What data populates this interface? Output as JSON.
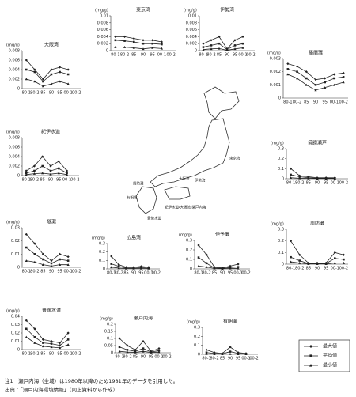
{
  "chart_data": [
    {
      "type": "line",
      "title": "東京湾",
      "y_label": "(mg/g)",
      "categories": [
        "80-1",
        "80-2",
        "85",
        "90",
        "95",
        "00-1",
        "00-2"
      ],
      "ylim": [
        0,
        0.01
      ],
      "yticks": [
        0,
        0.002,
        0.004,
        0.006,
        0.008,
        0.01
      ],
      "series": [
        {
          "marker": "diamond",
          "color": "#222",
          "values": [
            0.004,
            0.004,
            0.0035,
            0.003,
            0.003,
            0.0025,
            null
          ]
        },
        {
          "marker": "square",
          "color": "#222",
          "values": [
            0.003,
            0.0028,
            0.0025,
            0.002,
            0.002,
            0.0018,
            null
          ]
        },
        {
          "marker": "triangle",
          "color": "#222",
          "values": [
            0.001,
            0.001,
            0.0008,
            0.0005,
            0.0008,
            0.0006,
            null
          ]
        }
      ]
    },
    {
      "type": "line",
      "title": "伊勢湾",
      "y_label": "(mg/g)",
      "categories": [
        "80-1",
        "80-2",
        "85",
        "90",
        "95",
        "00-1",
        "00-2"
      ],
      "ylim": [
        0,
        0.01
      ],
      "yticks": [
        0,
        0.002,
        0.004,
        0.006,
        0.008,
        0.01
      ],
      "series": [
        {
          "marker": "diamond",
          "color": "#222",
          "values": [
            0.002,
            0.003,
            0.004,
            0.0005,
            0.003,
            0.004,
            null
          ]
        },
        {
          "marker": "square",
          "color": "#222",
          "values": [
            0.001,
            0.0015,
            0.002,
            0.0003,
            0.0015,
            0.002,
            null
          ]
        },
        {
          "marker": "triangle",
          "color": "#222",
          "values": [
            0.0003,
            0.0005,
            0.0006,
            0.0001,
            0.0005,
            0.0008,
            null
          ]
        }
      ]
    },
    {
      "type": "line",
      "title": "大阪湾",
      "y_label": "(mg/g)",
      "categories": [
        "80-1",
        "80-2",
        "85",
        "90",
        "95",
        "00-1",
        "00-2"
      ],
      "ylim": [
        0,
        0.008
      ],
      "yticks": [
        0,
        0.002,
        0.004,
        0.006,
        0.008
      ],
      "series": [
        {
          "marker": "diamond",
          "color": "#222",
          "values": [
            0.006,
            0.004,
            0.002,
            0.004,
            0.0045,
            0.004,
            null
          ]
        },
        {
          "marker": "square",
          "color": "#222",
          "values": [
            0.004,
            0.0035,
            0.0015,
            0.003,
            0.0035,
            0.003,
            null
          ]
        },
        {
          "marker": "triangle",
          "color": "#222",
          "values": [
            0.002,
            0.0015,
            0.0005,
            0.001,
            0.0015,
            0.001,
            null
          ]
        }
      ]
    },
    {
      "type": "line",
      "title": "播磨灘",
      "y_label": "(mg/g)",
      "categories": [
        "80-1",
        "80-2",
        "85",
        "90",
        "95",
        "00-1",
        "00-2"
      ],
      "ylim": [
        0,
        0.003
      ],
      "yticks": [
        0,
        0.001,
        0.002,
        0.003
      ],
      "series": [
        {
          "marker": "diamond",
          "color": "#222",
          "values": [
            0.0026,
            0.0024,
            0.002,
            0.0014,
            0.0015,
            0.0018,
            0.0019
          ]
        },
        {
          "marker": "square",
          "color": "#222",
          "values": [
            0.0022,
            0.002,
            0.0015,
            0.001,
            0.0012,
            0.0015,
            0.0016
          ]
        },
        {
          "marker": "triangle",
          "color": "#222",
          "values": [
            0.0018,
            0.0015,
            0.001,
            0.0006,
            0.0008,
            0.001,
            0.0012
          ]
        }
      ]
    },
    {
      "type": "line",
      "title": "紀伊水道",
      "y_label": "(mg/g)",
      "categories": [
        "80-1",
        "80-2",
        "85",
        "90",
        "95",
        "00-1",
        "00-2"
      ],
      "ylim": [
        0,
        0.008
      ],
      "yticks": [
        0,
        0.002,
        0.004,
        0.006,
        0.008
      ],
      "series": [
        {
          "marker": "diamond",
          "color": "#222",
          "values": [
            0.001,
            0.002,
            0.004,
            0.002,
            0.003,
            0.001,
            null
          ]
        },
        {
          "marker": "square",
          "color": "#222",
          "values": [
            0.0005,
            0.001,
            0.002,
            0.001,
            0.0015,
            0.0005,
            null
          ]
        },
        {
          "marker": "triangle",
          "color": "#222",
          "values": [
            0.0002,
            0.0004,
            0.0005,
            0.0003,
            0.0005,
            0.0002,
            null
          ]
        }
      ]
    },
    {
      "type": "line",
      "title": "備讃瀬戸",
      "y_label": "(mg/g)",
      "categories": [
        "80-1",
        "80-2",
        "85",
        "90",
        "95",
        "00-1",
        "00-2"
      ],
      "ylim": [
        0,
        0.3
      ],
      "yticks": [
        0,
        0.1,
        0.2,
        0.3
      ],
      "series": [
        {
          "marker": "diamond",
          "color": "#222",
          "values": [
            0.1,
            0.03,
            0.02,
            0.01,
            0.01,
            0.01,
            null
          ]
        },
        {
          "marker": "square",
          "color": "#222",
          "values": [
            0.04,
            0.02,
            0.01,
            0.005,
            0.005,
            0.005,
            null
          ]
        },
        {
          "marker": "triangle",
          "color": "#222",
          "values": [
            0.01,
            0.005,
            0.004,
            0.002,
            0.002,
            0.002,
            null
          ]
        }
      ]
    },
    {
      "type": "line",
      "title": "燧灘",
      "y_label": "(mg/g)",
      "categories": [
        "80-1",
        "80-2",
        "85",
        "90",
        "95",
        "00-1",
        "00-2"
      ],
      "ylim": [
        0,
        0.03
      ],
      "yticks": [
        0,
        0.01,
        0.02,
        0.03
      ],
      "series": [
        {
          "marker": "diamond",
          "color": "#222",
          "values": [
            0.025,
            0.018,
            0.01,
            0.005,
            0.01,
            0.008,
            null
          ]
        },
        {
          "marker": "square",
          "color": "#222",
          "values": [
            0.015,
            0.01,
            0.006,
            0.003,
            0.006,
            0.005,
            null
          ]
        },
        {
          "marker": "triangle",
          "color": "#222",
          "values": [
            0.005,
            0.004,
            0.002,
            0.001,
            0.002,
            0.002,
            null
          ]
        }
      ]
    },
    {
      "type": "line",
      "title": "広島湾",
      "y_label": "(mg/g)",
      "categories": [
        "80-1",
        "80-2",
        "85",
        "90",
        "95",
        "00-1",
        "00-2"
      ],
      "ylim": [
        0,
        0.3
      ],
      "yticks": [
        0,
        0.1,
        0.2,
        0.3
      ],
      "series": [
        {
          "marker": "diamond",
          "color": "#222",
          "values": [
            0.15,
            0.05,
            0.02,
            0.02,
            0.03,
            0.02,
            null
          ]
        },
        {
          "marker": "square",
          "color": "#222",
          "values": [
            0.06,
            0.03,
            0.01,
            0.01,
            0.015,
            0.01,
            null
          ]
        },
        {
          "marker": "triangle",
          "color": "#222",
          "values": [
            0.02,
            0.01,
            0.005,
            0.005,
            0.005,
            0.005,
            null
          ]
        }
      ]
    },
    {
      "type": "line",
      "title": "伊予灘",
      "y_label": "(mg/g)",
      "categories": [
        "80-1",
        "80-2",
        "85",
        "90",
        "95",
        "00-1",
        "00-2"
      ],
      "ylim": [
        0,
        0.3
      ],
      "yticks": [
        0,
        0.1,
        0.2,
        0.3
      ],
      "series": [
        {
          "marker": "diamond",
          "color": "#222",
          "values": [
            0.25,
            0.15,
            0.02,
            0.01,
            0.03,
            0.05,
            null
          ]
        },
        {
          "marker": "square",
          "color": "#222",
          "values": [
            0.12,
            0.06,
            0.01,
            0.005,
            0.015,
            0.02,
            null
          ]
        },
        {
          "marker": "triangle",
          "color": "#222",
          "values": [
            0.03,
            0.02,
            0.005,
            0.002,
            0.005,
            0.005,
            null
          ]
        }
      ]
    },
    {
      "type": "line",
      "title": "周防灘",
      "y_label": "(mg/g)",
      "categories": [
        "80-1",
        "80-2",
        "85",
        "90",
        "95",
        "00-1",
        "00-2"
      ],
      "ylim": [
        0,
        0.3
      ],
      "yticks": [
        0,
        0.1,
        0.2,
        0.3
      ],
      "series": [
        {
          "marker": "diamond",
          "color": "#222",
          "values": [
            0.2,
            0.08,
            0.01,
            0.01,
            0.01,
            0.1,
            0.08
          ]
        },
        {
          "marker": "square",
          "color": "#222",
          "values": [
            0.06,
            0.03,
            0.005,
            0.005,
            0.005,
            0.05,
            0.04
          ]
        },
        {
          "marker": "triangle",
          "color": "#222",
          "values": [
            0.02,
            0.01,
            0.002,
            0.002,
            0.002,
            0.01,
            0.01
          ]
        }
      ]
    },
    {
      "type": "line",
      "title": "豊後水道",
      "y_label": "(mg/g)",
      "categories": [
        "80-1",
        "80-2",
        "85",
        "90",
        "95",
        "00-1",
        "00-2"
      ],
      "ylim": [
        0,
        0.04
      ],
      "yticks": [
        0,
        0.01,
        0.02,
        0.03,
        0.04
      ],
      "series": [
        {
          "marker": "diamond",
          "color": "#222",
          "values": [
            0.035,
            0.025,
            0.012,
            0.01,
            0.008,
            0.02,
            null
          ]
        },
        {
          "marker": "square",
          "color": "#222",
          "values": [
            0.025,
            0.015,
            0.008,
            0.007,
            0.005,
            0.012,
            null
          ]
        },
        {
          "marker": "triangle",
          "color": "#222",
          "values": [
            0.015,
            0.008,
            0.004,
            0.003,
            0.002,
            0.006,
            null
          ]
        }
      ]
    },
    {
      "type": "line",
      "title": "瀬戸内海",
      "y_label": "(mg/g)",
      "categories": [
        "80-1",
        "80-2",
        "85",
        "90",
        "95",
        "00-1",
        "00-2"
      ],
      "ylim": [
        0,
        0.2
      ],
      "yticks": [
        0,
        0.05,
        0.1,
        0.15,
        0.2
      ],
      "series": [
        {
          "marker": "diamond",
          "color": "#222",
          "values": [
            0.1,
            0.05,
            0.02,
            0.08,
            0.01,
            0.03,
            null
          ]
        },
        {
          "marker": "square",
          "color": "#222",
          "values": [
            0.04,
            0.02,
            0.01,
            0.03,
            0.005,
            0.015,
            null
          ]
        },
        {
          "marker": "triangle",
          "color": "#222",
          "values": [
            0.01,
            0.005,
            0.003,
            0.01,
            0.002,
            0.005,
            null
          ]
        }
      ]
    },
    {
      "type": "line",
      "title": "有明海",
      "y_label": "(mg/g)",
      "categories": [
        "80-1",
        "80-2",
        "85",
        "90",
        "95",
        "00-1",
        "00-2"
      ],
      "ylim": [
        0,
        0.3
      ],
      "yticks": [
        0,
        0.1,
        0.2,
        0.3
      ],
      "series": [
        {
          "marker": "diamond",
          "color": "#222",
          "values": [
            0.05,
            0.02,
            0.01,
            0.08,
            0.02,
            0.01,
            null
          ]
        },
        {
          "marker": "square",
          "color": "#222",
          "values": [
            0.02,
            0.01,
            0.005,
            0.03,
            0.01,
            0.005,
            null
          ]
        },
        {
          "marker": "triangle",
          "color": "#222",
          "values": [
            0.005,
            0.003,
            0.002,
            0.005,
            0.003,
            0.002,
            null
          ]
        }
      ]
    }
  ],
  "legend": [
    {
      "name": "最大値",
      "marker": "diamond"
    },
    {
      "name": "平均値",
      "marker": "square"
    },
    {
      "name": "最小値",
      "marker": "triangle"
    }
  ],
  "map": {
    "labels": [
      "東京湾",
      "伊勢湾",
      "大阪湾",
      "周防灘",
      "豊後水道",
      "有明海",
      "紀伊水道・大阪湾・瀬戸内海"
    ]
  },
  "notes": [
    "注1　瀬戸内海（全域）は1980年以降のため1981年のデータを引用した。",
    "出典：「瀬戸内海環境情報」（同上資料から作成）"
  ]
}
